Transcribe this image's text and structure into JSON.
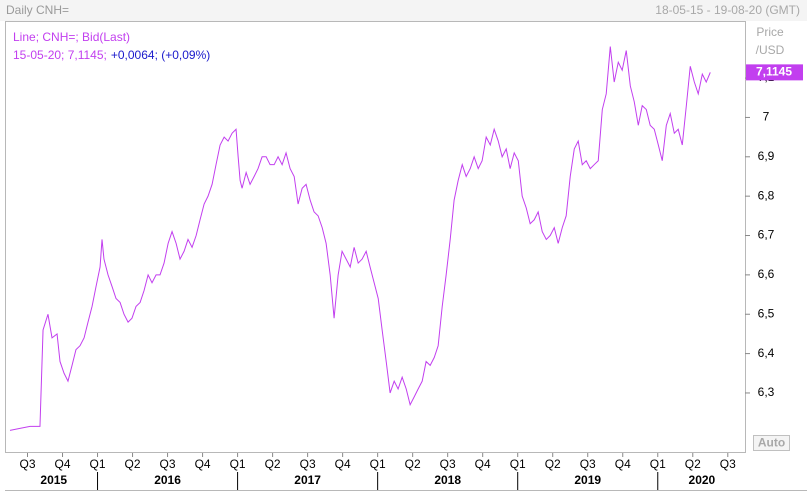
{
  "chart_data": {
    "type": "line",
    "title": "Daily CNH=",
    "date_range": "18-05-15 - 19-08-20 (GMT)",
    "legend_line1": "Line; CNH=; Bid(Last)",
    "legend_values": "15-05-20; 7,1145;",
    "legend_change": "+0,0064; (+0,09%)",
    "y_label_1": "Price",
    "y_label_2": "/USD",
    "scale_mode": "Auto",
    "grid": false,
    "x": [
      2015.375,
      2015.446,
      2015.518,
      2015.589,
      2015.611,
      2015.646,
      2015.675,
      2015.711,
      2015.732,
      2015.761,
      2015.789,
      2015.818,
      2015.846,
      2015.875,
      2015.904,
      2015.932,
      2015.961,
      2015.989,
      2016.018,
      2016.032,
      2016.046,
      2016.075,
      2016.104,
      2016.132,
      2016.161,
      2016.189,
      2016.218,
      2016.246,
      2016.275,
      2016.304,
      2016.332,
      2016.361,
      2016.389,
      2016.418,
      2016.446,
      2016.475,
      2016.504,
      2016.532,
      2016.561,
      2016.589,
      2016.618,
      2016.646,
      2016.675,
      2016.704,
      2016.732,
      2016.761,
      2016.789,
      2016.818,
      2016.846,
      2016.875,
      2016.904,
      2016.932,
      2016.961,
      2016.989,
      2017.004,
      2017.018,
      2017.032,
      2017.061,
      2017.089,
      2017.118,
      2017.146,
      2017.175,
      2017.204,
      2017.232,
      2017.261,
      2017.289,
      2017.318,
      2017.346,
      2017.375,
      2017.404,
      2017.432,
      2017.461,
      2017.489,
      2017.518,
      2017.546,
      2017.575,
      2017.604,
      2017.632,
      2017.661,
      2017.689,
      2017.718,
      2017.746,
      2017.775,
      2017.804,
      2017.832,
      2017.861,
      2017.889,
      2017.918,
      2017.946,
      2017.975,
      2018.004,
      2018.032,
      2018.061,
      2018.089,
      2018.118,
      2018.146,
      2018.175,
      2018.204,
      2018.232,
      2018.261,
      2018.289,
      2018.318,
      2018.346,
      2018.375,
      2018.404,
      2018.432,
      2018.461,
      2018.489,
      2018.518,
      2018.546,
      2018.575,
      2018.604,
      2018.632,
      2018.661,
      2018.689,
      2018.718,
      2018.746,
      2018.775,
      2018.804,
      2018.832,
      2018.861,
      2018.889,
      2018.918,
      2018.946,
      2018.975,
      2019.004,
      2019.032,
      2019.061,
      2019.089,
      2019.118,
      2019.146,
      2019.175,
      2019.204,
      2019.232,
      2019.261,
      2019.289,
      2019.318,
      2019.346,
      2019.375,
      2019.404,
      2019.432,
      2019.461,
      2019.489,
      2019.518,
      2019.546,
      2019.575,
      2019.604,
      2019.632,
      2019.661,
      2019.689,
      2019.718,
      2019.746,
      2019.775,
      2019.804,
      2019.832,
      2019.861,
      2019.889,
      2019.918,
      2019.946,
      2019.975,
      2020.004,
      2020.032,
      2020.061,
      2020.089,
      2020.118,
      2020.146,
      2020.175,
      2020.204,
      2020.232,
      2020.261,
      2020.289,
      2020.318,
      2020.346,
      2020.375
    ],
    "series": [
      {
        "name": "CNH=",
        "color": "#c23fef",
        "last_label": "7,1145",
        "values": [
          6.205,
          6.21,
          6.215,
          6.215,
          6.46,
          6.5,
          6.44,
          6.45,
          6.38,
          6.35,
          6.33,
          6.37,
          6.41,
          6.42,
          6.44,
          6.48,
          6.52,
          6.57,
          6.62,
          6.69,
          6.64,
          6.6,
          6.57,
          6.54,
          6.53,
          6.5,
          6.48,
          6.49,
          6.52,
          6.53,
          6.56,
          6.6,
          6.58,
          6.6,
          6.6,
          6.63,
          6.68,
          6.71,
          6.68,
          6.64,
          6.66,
          6.69,
          6.67,
          6.7,
          6.74,
          6.78,
          6.8,
          6.83,
          6.88,
          6.93,
          6.95,
          6.94,
          6.96,
          6.97,
          6.9,
          6.84,
          6.82,
          6.86,
          6.83,
          6.85,
          6.87,
          6.9,
          6.9,
          6.88,
          6.88,
          6.9,
          6.88,
          6.91,
          6.87,
          6.85,
          6.78,
          6.82,
          6.83,
          6.79,
          6.76,
          6.75,
          6.72,
          6.68,
          6.6,
          6.49,
          6.6,
          6.66,
          6.64,
          6.62,
          6.67,
          6.63,
          6.64,
          6.66,
          6.62,
          6.58,
          6.54,
          6.46,
          6.38,
          6.3,
          6.33,
          6.31,
          6.34,
          6.31,
          6.27,
          6.29,
          6.31,
          6.33,
          6.38,
          6.37,
          6.39,
          6.42,
          6.52,
          6.6,
          6.69,
          6.79,
          6.84,
          6.88,
          6.85,
          6.87,
          6.9,
          6.87,
          6.89,
          6.95,
          6.93,
          6.97,
          6.94,
          6.9,
          6.92,
          6.87,
          6.91,
          6.89,
          6.8,
          6.77,
          6.73,
          6.74,
          6.76,
          6.71,
          6.69,
          6.7,
          6.72,
          6.68,
          6.72,
          6.75,
          6.85,
          6.92,
          6.94,
          6.88,
          6.89,
          6.87,
          6.88,
          6.89,
          7.02,
          7.06,
          7.18,
          7.09,
          7.14,
          7.12,
          7.17,
          7.08,
          7.04,
          6.98,
          7.03,
          7.02,
          6.98,
          6.97,
          6.93,
          6.89,
          6.98,
          7.01,
          6.96,
          6.97,
          6.93,
          7.03,
          7.13,
          7.09,
          7.06,
          7.11,
          7.09,
          7.1145
        ]
      }
    ],
    "xlim": [
      2015.375,
      2020.63
    ],
    "xticks": [
      {
        "value": 2015.5,
        "label": "Q3"
      },
      {
        "value": 2015.75,
        "label": "Q4"
      },
      {
        "value": 2016,
        "label": "Q1"
      },
      {
        "value": 2016.25,
        "label": "Q2"
      },
      {
        "value": 2016.5,
        "label": "Q3"
      },
      {
        "value": 2016.75,
        "label": "Q4"
      },
      {
        "value": 2017,
        "label": "Q1"
      },
      {
        "value": 2017.25,
        "label": "Q2"
      },
      {
        "value": 2017.5,
        "label": "Q3"
      },
      {
        "value": 2017.75,
        "label": "Q4"
      },
      {
        "value": 2018,
        "label": "Q1"
      },
      {
        "value": 2018.25,
        "label": "Q2"
      },
      {
        "value": 2018.5,
        "label": "Q3"
      },
      {
        "value": 2018.75,
        "label": "Q4"
      },
      {
        "value": 2019,
        "label": "Q1"
      },
      {
        "value": 2019.25,
        "label": "Q2"
      },
      {
        "value": 2019.5,
        "label": "Q3"
      },
      {
        "value": 2019.75,
        "label": "Q4"
      },
      {
        "value": 2020,
        "label": "Q1"
      },
      {
        "value": 2020.25,
        "label": "Q2"
      },
      {
        "value": 2020.5,
        "label": "Q3"
      }
    ],
    "years": [
      2015,
      2016,
      2017,
      2018,
      2019,
      2020
    ],
    "ylim": [
      6.15,
      7.245
    ],
    "yticks": [
      {
        "value": 6.3,
        "label": "6,3"
      },
      {
        "value": 6.4,
        "label": "6,4"
      },
      {
        "value": 6.5,
        "label": "6,5"
      },
      {
        "value": 6.6,
        "label": "6,6"
      },
      {
        "value": 6.7,
        "label": "6,7"
      },
      {
        "value": 6.8,
        "label": "6,8"
      },
      {
        "value": 6.9,
        "label": "6,9"
      },
      7,
      {
        "value": 7.1,
        "label": "7,1"
      }
    ]
  }
}
